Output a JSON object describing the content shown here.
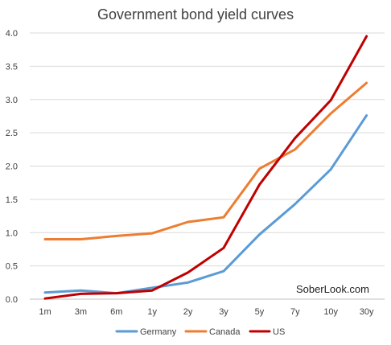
{
  "chart_data": {
    "type": "line",
    "title": "Government bond yield curves",
    "categories": [
      "1m",
      "3m",
      "6m",
      "1y",
      "2y",
      "3y",
      "5y",
      "7y",
      "10y",
      "30y"
    ],
    "ylim": [
      0,
      4.0
    ],
    "yticks": [
      "0.0",
      "0.5",
      "1.0",
      "1.5",
      "2.0",
      "2.5",
      "3.0",
      "3.5",
      "4.0"
    ],
    "grid": true,
    "legend_position": "bottom",
    "annotation": "SoberLook.com",
    "series": [
      {
        "name": "Germany",
        "color": "#5B9BD5",
        "values": [
          0.1,
          0.13,
          0.09,
          0.17,
          0.25,
          0.42,
          0.97,
          1.43,
          1.95,
          2.76
        ]
      },
      {
        "name": "Canada",
        "color": "#ED7D31",
        "values": [
          0.9,
          0.9,
          0.95,
          0.99,
          1.16,
          1.23,
          1.96,
          2.25,
          2.79,
          3.25
        ]
      },
      {
        "name": "US",
        "color": "#C00000",
        "values": [
          0.01,
          0.08,
          0.09,
          0.13,
          0.4,
          0.77,
          1.72,
          2.42,
          2.99,
          3.95
        ]
      }
    ]
  }
}
